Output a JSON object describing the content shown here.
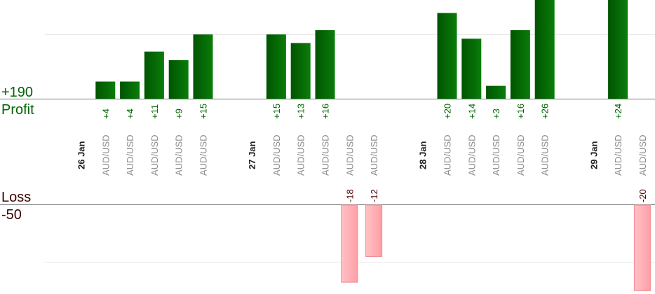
{
  "summary": {
    "profit_total": "+190",
    "profit_label": "Profit",
    "loss_label": "Loss",
    "loss_total": "-50"
  },
  "colors": {
    "profit_dark": "#005400",
    "profit_light": "#0a8a0a",
    "profit_text": "#006400",
    "loss_fill": "#ffb3b8",
    "loss_border": "#f08a92",
    "loss_text": "#4a0000",
    "grid": "#e8e8e8",
    "baseline": "#777777",
    "category_text": "#8a8a8a",
    "date_text": "#222222"
  },
  "chart_data": {
    "type": "bar",
    "title": "",
    "xlabel": "",
    "ylabel": "",
    "grid": true,
    "note": "Profit bars drawn above the upper baseline, loss bars drawn below the lower baseline; several profit bars exceed the visible area.",
    "columns": [
      {
        "kind": "date",
        "label": "26 Jan"
      },
      {
        "kind": "trade",
        "label": "AUD/USD",
        "value": 4
      },
      {
        "kind": "trade",
        "label": "AUD/USD",
        "value": 4
      },
      {
        "kind": "trade",
        "label": "AUD/USD",
        "value": 11
      },
      {
        "kind": "trade",
        "label": "AUD/USD",
        "value": 9
      },
      {
        "kind": "trade",
        "label": "AUD/USD",
        "value": 15
      },
      {
        "kind": "gap"
      },
      {
        "kind": "date",
        "label": "27 Jan"
      },
      {
        "kind": "trade",
        "label": "AUD/USD",
        "value": 15
      },
      {
        "kind": "trade",
        "label": "AUD/USD",
        "value": 13
      },
      {
        "kind": "trade",
        "label": "AUD/USD",
        "value": 16
      },
      {
        "kind": "trade",
        "label": "AUD/USD",
        "value": -18
      },
      {
        "kind": "trade",
        "label": "AUD/USD",
        "value": -12
      },
      {
        "kind": "gap"
      },
      {
        "kind": "date",
        "label": "28 Jan"
      },
      {
        "kind": "trade",
        "label": "AUD/USD",
        "value": 20
      },
      {
        "kind": "trade",
        "label": "AUD/USD",
        "value": 14
      },
      {
        "kind": "trade",
        "label": "AUD/USD",
        "value": 3
      },
      {
        "kind": "trade",
        "label": "AUD/USD",
        "value": 16
      },
      {
        "kind": "trade",
        "label": "AUD/USD",
        "value": 26
      },
      {
        "kind": "gap"
      },
      {
        "kind": "date",
        "label": "29 Jan"
      },
      {
        "kind": "trade",
        "label": "AUD/USD",
        "value": 24
      },
      {
        "kind": "trade",
        "label": "AUD/USD",
        "value": -20
      }
    ]
  }
}
